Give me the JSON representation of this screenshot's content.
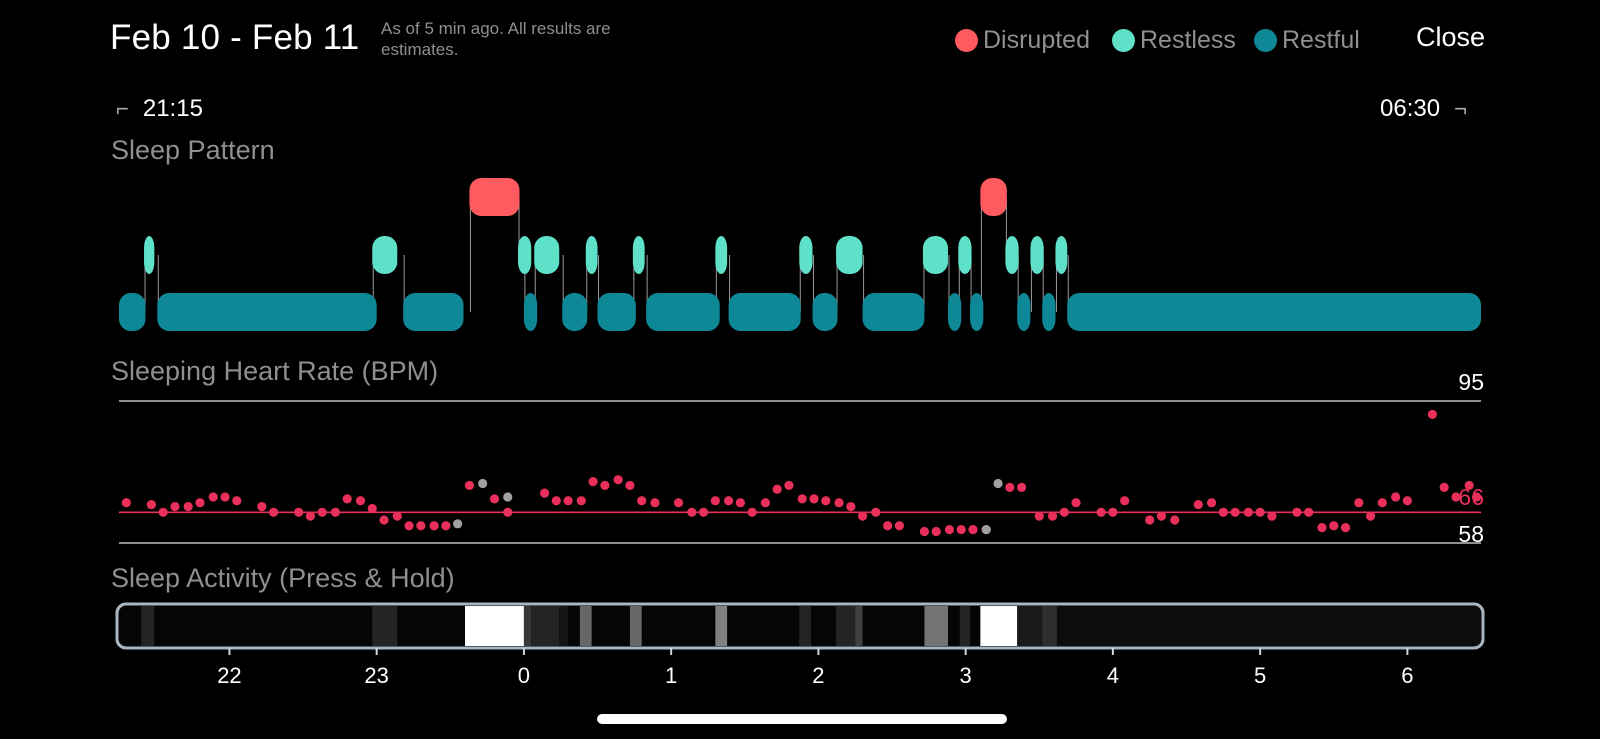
{
  "header": {
    "date_range": "Feb 10 - Feb 11",
    "as_of": "As of 5 min ago. All results are estimates.",
    "close_label": "Close"
  },
  "legend": [
    {
      "label": "Disrupted",
      "color": "#ff5a5f"
    },
    {
      "label": "Restless",
      "color": "#5fe0c9"
    },
    {
      "label": "Restful",
      "color": "#0e8896"
    }
  ],
  "time_range": {
    "start": "21:15",
    "end": "06:30"
  },
  "sections": {
    "pattern_title": "Sleep Pattern",
    "hr_title": "Sleeping Heart Rate (BPM)",
    "activity_title": "Sleep Activity (Press & Hold)"
  },
  "chart_data": [
    {
      "type": "timeline",
      "name": "Sleep Pattern",
      "x_range": [
        21.25,
        30.5
      ],
      "stages": [
        "Disrupted",
        "Restless",
        "Restful"
      ],
      "segments": [
        {
          "start": 21.25,
          "end": 21.43,
          "stage": "Restful"
        },
        {
          "start": 21.42,
          "end": 21.49,
          "stage": "Restless"
        },
        {
          "start": 21.51,
          "end": 23.0,
          "stage": "Restful"
        },
        {
          "start": 22.97,
          "end": 23.14,
          "stage": "Restless"
        },
        {
          "start": 23.18,
          "end": 23.59,
          "stage": "Restful"
        },
        {
          "start": 23.63,
          "end": 23.97,
          "stage": "Disrupted"
        },
        {
          "start": 23.96,
          "end": 24.05,
          "stage": "Restless"
        },
        {
          "start": 24.0,
          "end": 24.09,
          "stage": "Restful"
        },
        {
          "start": 24.07,
          "end": 24.24,
          "stage": "Restless"
        },
        {
          "start": 24.26,
          "end": 24.43,
          "stage": "Restful"
        },
        {
          "start": 24.42,
          "end": 24.5,
          "stage": "Restless"
        },
        {
          "start": 24.5,
          "end": 24.76,
          "stage": "Restful"
        },
        {
          "start": 24.74,
          "end": 24.82,
          "stage": "Restless"
        },
        {
          "start": 24.83,
          "end": 25.33,
          "stage": "Restful"
        },
        {
          "start": 25.3,
          "end": 25.38,
          "stage": "Restless"
        },
        {
          "start": 25.39,
          "end": 25.88,
          "stage": "Restful"
        },
        {
          "start": 25.87,
          "end": 25.96,
          "stage": "Restless"
        },
        {
          "start": 25.96,
          "end": 26.13,
          "stage": "Restful"
        },
        {
          "start": 26.12,
          "end": 26.3,
          "stage": "Restless"
        },
        {
          "start": 26.3,
          "end": 26.72,
          "stage": "Restful"
        },
        {
          "start": 26.71,
          "end": 26.88,
          "stage": "Restless"
        },
        {
          "start": 26.88,
          "end": 26.97,
          "stage": "Restful"
        },
        {
          "start": 26.95,
          "end": 27.04,
          "stage": "Restless"
        },
        {
          "start": 27.03,
          "end": 27.12,
          "stage": "Restful"
        },
        {
          "start": 27.1,
          "end": 27.28,
          "stage": "Disrupted"
        },
        {
          "start": 27.27,
          "end": 27.36,
          "stage": "Restless"
        },
        {
          "start": 27.35,
          "end": 27.44,
          "stage": "Restful"
        },
        {
          "start": 27.44,
          "end": 27.53,
          "stage": "Restless"
        },
        {
          "start": 27.52,
          "end": 27.61,
          "stage": "Restful"
        },
        {
          "start": 27.61,
          "end": 27.69,
          "stage": "Restless"
        },
        {
          "start": 27.69,
          "end": 30.5,
          "stage": "Restful"
        }
      ]
    },
    {
      "type": "scatter",
      "name": "Sleeping Heart Rate (BPM)",
      "x_range": [
        21.25,
        30.5
      ],
      "ylim": [
        58,
        95
      ],
      "max_label": "95",
      "min_label": "58",
      "avg_label": "66",
      "average": 66,
      "point_color": "#e8305a",
      "missing_color": "#a0a0a0",
      "points": [
        [
          21.3,
          68.5
        ],
        [
          21.47,
          68
        ],
        [
          21.55,
          66
        ],
        [
          21.63,
          67.5
        ],
        [
          21.72,
          67.5
        ],
        [
          21.8,
          68.5
        ],
        [
          21.89,
          70
        ],
        [
          21.97,
          70
        ],
        [
          22.05,
          69
        ],
        [
          22.22,
          67.5
        ],
        [
          22.3,
          66
        ],
        [
          22.47,
          66
        ],
        [
          22.55,
          65
        ],
        [
          22.63,
          66
        ],
        [
          22.72,
          66
        ],
        [
          22.8,
          69.5
        ],
        [
          22.89,
          69
        ],
        [
          22.97,
          67
        ],
        [
          23.05,
          64
        ],
        [
          23.14,
          65
        ],
        [
          23.22,
          62.5
        ],
        [
          23.3,
          62.5
        ],
        [
          23.39,
          62.5
        ],
        [
          23.47,
          62.5
        ],
        [
          23.63,
          73
        ],
        [
          23.8,
          69.5
        ],
        [
          23.89,
          66
        ],
        [
          24.14,
          71
        ],
        [
          24.22,
          69
        ],
        [
          24.3,
          69
        ],
        [
          24.39,
          69
        ],
        [
          24.47,
          74
        ],
        [
          24.55,
          73
        ],
        [
          24.64,
          74.5
        ],
        [
          24.72,
          73
        ],
        [
          24.8,
          69
        ],
        [
          24.89,
          68.5
        ],
        [
          25.05,
          68.5
        ],
        [
          25.14,
          66
        ],
        [
          25.22,
          66
        ],
        [
          25.3,
          69
        ],
        [
          25.39,
          69
        ],
        [
          25.47,
          68.5
        ],
        [
          25.55,
          66
        ],
        [
          25.64,
          68.5
        ],
        [
          25.72,
          72
        ],
        [
          25.8,
          73
        ],
        [
          25.89,
          69.5
        ],
        [
          25.97,
          69.5
        ],
        [
          26.05,
          69
        ],
        [
          26.14,
          68.5
        ],
        [
          26.22,
          67.5
        ],
        [
          26.3,
          65
        ],
        [
          26.39,
          66
        ],
        [
          26.47,
          62.5
        ],
        [
          26.55,
          62.5
        ],
        [
          26.72,
          61
        ],
        [
          26.8,
          61
        ],
        [
          26.89,
          61.5
        ],
        [
          26.97,
          61.5
        ],
        [
          27.05,
          61.5
        ],
        [
          27.14,
          61.5
        ],
        [
          27.3,
          72.5
        ],
        [
          27.38,
          72.5
        ],
        [
          27.5,
          65
        ],
        [
          27.59,
          65
        ],
        [
          27.67,
          66
        ],
        [
          27.75,
          68.5
        ],
        [
          27.92,
          66
        ],
        [
          28.0,
          66
        ],
        [
          28.08,
          69
        ],
        [
          28.25,
          64
        ],
        [
          28.33,
          65
        ],
        [
          28.42,
          64
        ],
        [
          28.58,
          68
        ],
        [
          28.67,
          68.5
        ],
        [
          28.75,
          66
        ],
        [
          28.83,
          66
        ],
        [
          28.92,
          66
        ],
        [
          29.0,
          66
        ],
        [
          29.08,
          65
        ],
        [
          29.25,
          66
        ],
        [
          29.33,
          66
        ],
        [
          29.42,
          62
        ],
        [
          29.5,
          62.5
        ],
        [
          29.58,
          62
        ],
        [
          29.67,
          68.5
        ],
        [
          29.75,
          65
        ],
        [
          29.83,
          68.5
        ],
        [
          29.92,
          70
        ],
        [
          30.0,
          69
        ],
        [
          30.17,
          91.5
        ],
        [
          30.25,
          72.5
        ],
        [
          30.33,
          70
        ],
        [
          30.42,
          73
        ],
        [
          30.47,
          70
        ]
      ],
      "missing_points": [
        [
          23.72,
          73.5
        ],
        [
          23.89,
          70
        ],
        [
          23.55,
          63
        ],
        [
          27.22,
          73.5
        ],
        [
          27.14,
          61.5
        ]
      ]
    },
    {
      "type": "heatmap",
      "name": "Sleep Activity (Press & Hold)",
      "x_range": [
        21.25,
        30.5
      ],
      "x_ticks": [
        "22",
        "23",
        "0",
        "1",
        "2",
        "3",
        "4",
        "5",
        "6"
      ],
      "x_tick_values": [
        22,
        23,
        24,
        25,
        26,
        27,
        28,
        29,
        30
      ],
      "cells": [
        {
          "start": 21.4,
          "end": 21.49,
          "intensity": 0.14
        },
        {
          "start": 22.97,
          "end": 23.14,
          "intensity": 0.14
        },
        {
          "start": 23.6,
          "end": 24.0,
          "intensity": 1.0
        },
        {
          "start": 24.0,
          "end": 24.05,
          "intensity": 0.22
        },
        {
          "start": 24.05,
          "end": 24.24,
          "intensity": 0.14
        },
        {
          "start": 24.24,
          "end": 24.3,
          "intensity": 0.08
        },
        {
          "start": 24.38,
          "end": 24.46,
          "intensity": 0.4
        },
        {
          "start": 24.72,
          "end": 24.8,
          "intensity": 0.4
        },
        {
          "start": 25.3,
          "end": 25.38,
          "intensity": 0.5
        },
        {
          "start": 25.87,
          "end": 25.95,
          "intensity": 0.14
        },
        {
          "start": 26.12,
          "end": 26.25,
          "intensity": 0.14
        },
        {
          "start": 26.25,
          "end": 26.3,
          "intensity": 0.25
        },
        {
          "start": 26.72,
          "end": 26.88,
          "intensity": 0.45
        },
        {
          "start": 26.96,
          "end": 27.03,
          "intensity": 0.14
        },
        {
          "start": 27.1,
          "end": 27.35,
          "intensity": 1.0
        },
        {
          "start": 27.35,
          "end": 27.52,
          "intensity": 0.1
        },
        {
          "start": 27.52,
          "end": 27.62,
          "intensity": 0.18
        },
        {
          "start": 27.62,
          "end": 30.5,
          "intensity": 0.05
        }
      ]
    }
  ]
}
